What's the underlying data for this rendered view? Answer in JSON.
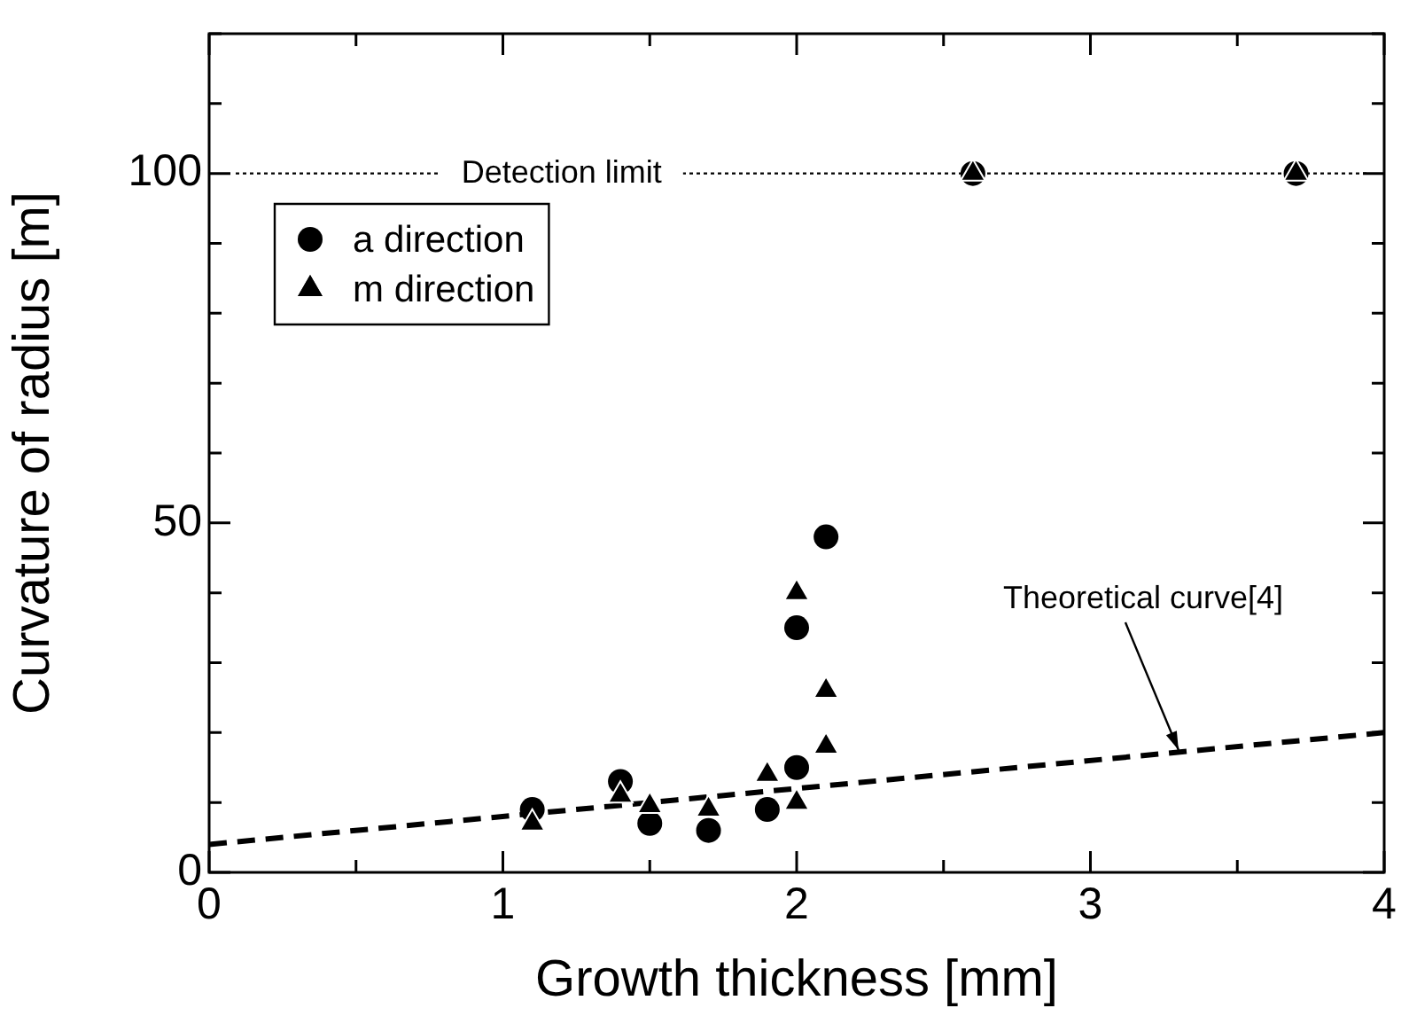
{
  "chart_data": {
    "type": "scatter",
    "xlabel": "Growth thickness [mm]",
    "ylabel": "Curvature of radius [m]",
    "xlim": [
      0,
      4
    ],
    "ylim": [
      0,
      120
    ],
    "xticks": [
      0,
      {
        "value": 0.5,
        "label": null
      },
      1,
      {
        "value": 1.5,
        "label": null
      },
      2,
      {
        "value": 2.5,
        "label": null
      },
      3,
      {
        "value": 3.5,
        "label": null
      },
      4
    ],
    "yticks": [
      0,
      {
        "value": 10,
        "label": null
      },
      {
        "value": 20,
        "label": null
      },
      {
        "value": 30,
        "label": null
      },
      {
        "value": 40,
        "label": null
      },
      50,
      {
        "value": 60,
        "label": null
      },
      {
        "value": 70,
        "label": null
      },
      {
        "value": 80,
        "label": null
      },
      {
        "value": 90,
        "label": null
      },
      100,
      {
        "value": 110,
        "label": null
      },
      {
        "value": 120,
        "label": null
      }
    ],
    "grid": false,
    "legend": "top left",
    "series": [
      {
        "name": "a direction",
        "marker": "circle",
        "color": "#000000",
        "x": [
          1.1,
          1.4,
          1.5,
          1.7,
          1.9,
          2.0,
          2.0,
          2.1,
          2.6,
          3.7
        ],
        "values": [
          9,
          13,
          7,
          6,
          9,
          15,
          35,
          48,
          100,
          100
        ]
      },
      {
        "name": "m direction",
        "marker": "triangle",
        "color": "#000000",
        "x": [
          1.1,
          1.4,
          1.5,
          1.7,
          1.9,
          2.0,
          2.0,
          2.1,
          2.1,
          2.6,
          3.7
        ],
        "values": [
          7,
          11,
          9.5,
          9,
          14,
          10,
          40,
          18,
          26,
          100,
          100
        ]
      },
      {
        "type": "line",
        "marker": "none",
        "line_style": "dashed",
        "color": "#000000",
        "x": [
          0,
          4
        ],
        "values": [
          4,
          20
        ]
      }
    ],
    "ref_lines": [
      {
        "axis": "y",
        "value": 100,
        "label": "Detection limit",
        "line_style": "dotted",
        "color": "#000000"
      }
    ],
    "annotations": [
      {
        "text": "Theoretical curve[4]",
        "x": 3.3,
        "y": 17.5
      }
    ]
  }
}
